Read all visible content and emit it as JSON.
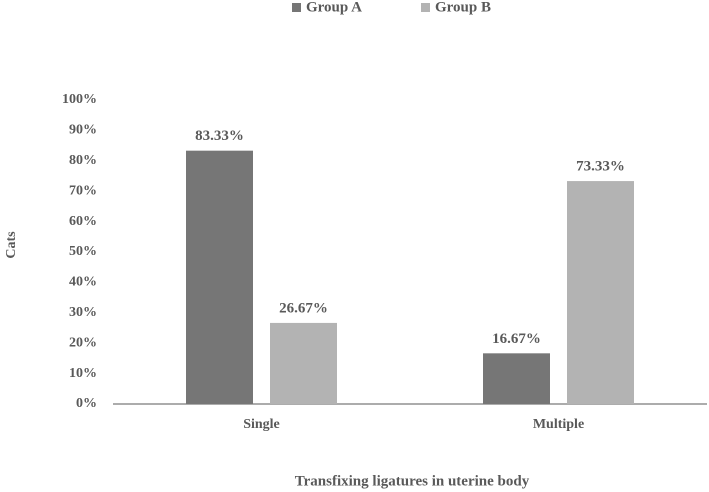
{
  "chart_data": {
    "type": "bar",
    "xlabel": "Transfixing ligatures in uterine body",
    "ylabel": "Cats",
    "categories": [
      "Single",
      "Multiple"
    ],
    "series": [
      {
        "name": "Group A",
        "color": "#767676",
        "values": [
          83.33,
          16.67
        ],
        "value_labels": [
          "83.33%",
          "16.67%"
        ]
      },
      {
        "name": "Group B",
        "color": "#b3b3b3",
        "values": [
          26.67,
          73.33
        ],
        "value_labels": [
          "26.67%",
          "73.33%"
        ]
      }
    ],
    "ylim": [
      0,
      100
    ],
    "yticks": [
      {
        "value": 0,
        "label": "0%"
      },
      {
        "value": 10,
        "label": "10%"
      },
      {
        "value": 20,
        "label": "20%"
      },
      {
        "value": 30,
        "label": "30%"
      },
      {
        "value": 40,
        "label": "40%"
      },
      {
        "value": 50,
        "label": "50%"
      },
      {
        "value": 60,
        "label": "60%"
      },
      {
        "value": 70,
        "label": "70%"
      },
      {
        "value": 80,
        "label": "80%"
      },
      {
        "value": 90,
        "label": "90%"
      },
      {
        "value": 100,
        "label": "100%"
      }
    ],
    "grid": false,
    "legend": "top"
  }
}
